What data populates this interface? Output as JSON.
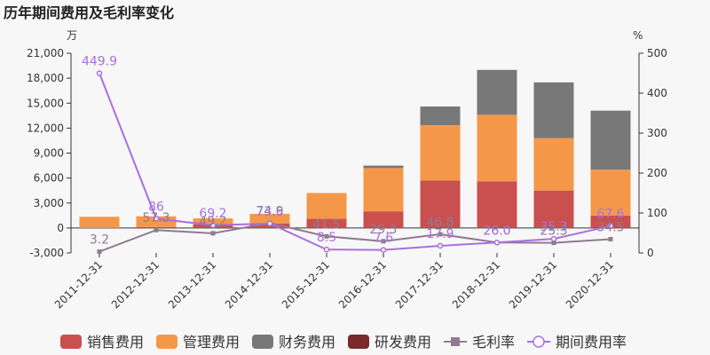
{
  "title": "历年期间费用及毛利率变化",
  "chart_data": {
    "type": "bar",
    "stacked": true,
    "title": "历年期间费用及毛利率变化",
    "categories": [
      "2011-12-31",
      "2012-12-31",
      "2013-12-31",
      "2014-12-31",
      "2015-12-31",
      "2016-12-31",
      "2017-12-31",
      "2018-12-31",
      "2019-12-31",
      "2020-12-31"
    ],
    "y_left": {
      "unit": "万",
      "min": -3000,
      "max": 21000,
      "ticks": [
        "-3,000",
        "0",
        "3,000",
        "6,000",
        "9,000",
        "12,000",
        "15,000",
        "18,000",
        "21,000"
      ]
    },
    "y_right": {
      "unit": "%",
      "min": 0,
      "max": 500,
      "ticks": [
        "0",
        "100",
        "200",
        "300",
        "400",
        "500"
      ]
    },
    "series": [
      {
        "name": "销售费用",
        "color": "#c9504f",
        "values": [
          0,
          100,
          450,
          550,
          1100,
          2000,
          5700,
          5600,
          4500,
          1500
        ]
      },
      {
        "name": "管理费用",
        "color": "#f59749",
        "values": [
          1350,
          1300,
          700,
          1150,
          3100,
          5200,
          6650,
          8000,
          6300,
          5500
        ]
      },
      {
        "name": "财务费用",
        "color": "#787878",
        "values": [
          0,
          0,
          0,
          0,
          0,
          300,
          2250,
          5400,
          6700,
          7100
        ]
      },
      {
        "name": "研发费用",
        "color": "#7a2a2a",
        "values": [
          0,
          0,
          0,
          0,
          0,
          0,
          0,
          0,
          0,
          0
        ]
      }
    ],
    "lines": [
      {
        "name": "毛利率",
        "color": "#8f7b8f",
        "marker": "square",
        "values": [
          3.2,
          57.3,
          49.2,
          74.9,
          41.5,
          29.3,
          46.8,
          26.0,
          25.3,
          34.5
        ],
        "labels": [
          "3.2",
          "57.3",
          "49.2",
          "74.9",
          "41.5",
          "29.3",
          "46.8",
          "26.0",
          "25.3",
          "34.5"
        ]
      },
      {
        "name": "期间费用率",
        "color": "#a970e0",
        "marker": "circle",
        "values": [
          449.9,
          86.0,
          69.2,
          73.6,
          8.5,
          7.6,
          17.9,
          26.0,
          35.3,
          67.6
        ],
        "labels": [
          "449.9",
          "86",
          "69.2",
          "73.6",
          "8.5",
          "7.6",
          "17.9",
          "26.0",
          "35.3",
          "67.6"
        ]
      }
    ],
    "legend_position": "bottom",
    "grid": false
  }
}
